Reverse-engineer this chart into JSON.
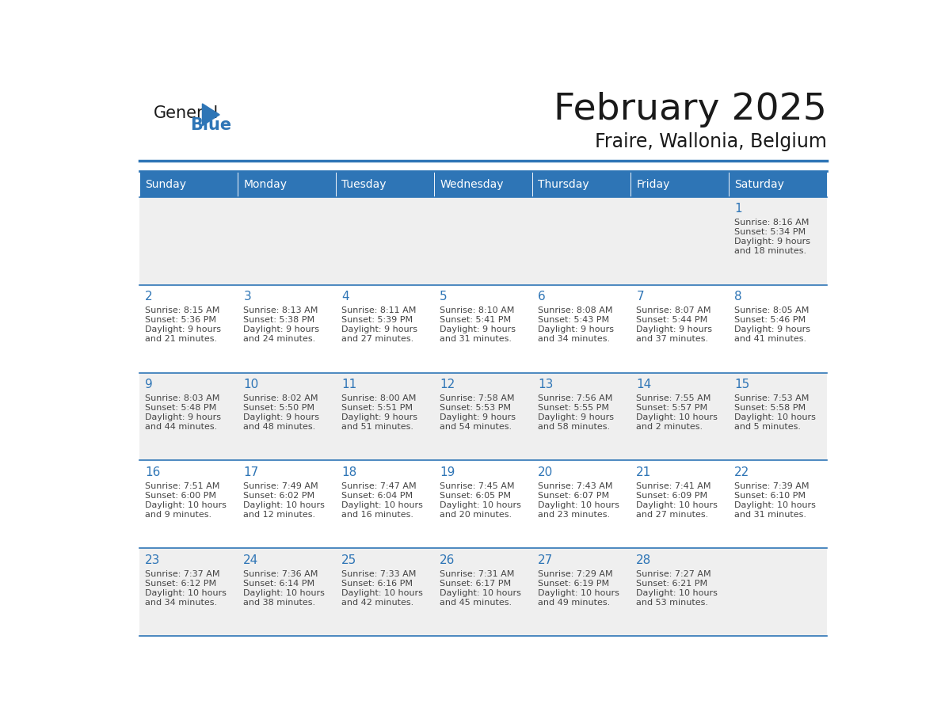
{
  "title": "February 2025",
  "subtitle": "Fraire, Wallonia, Belgium",
  "header_color": "#2E75B6",
  "header_text_color": "#FFFFFF",
  "cell_bg_white": "#FFFFFF",
  "cell_bg_gray": "#EFEFEF",
  "day_number_color": "#2E75B6",
  "text_color": "#444444",
  "line_color": "#2E75B6",
  "weekdays": [
    "Sunday",
    "Monday",
    "Tuesday",
    "Wednesday",
    "Thursday",
    "Friday",
    "Saturday"
  ],
  "calendar_data": [
    [
      null,
      null,
      null,
      null,
      null,
      null,
      {
        "day": "1",
        "sunrise": "8:16 AM",
        "sunset": "5:34 PM",
        "daylight": "9 hours",
        "daylight2": "and 18 minutes."
      }
    ],
    [
      {
        "day": "2",
        "sunrise": "8:15 AM",
        "sunset": "5:36 PM",
        "daylight": "9 hours",
        "daylight2": "and 21 minutes."
      },
      {
        "day": "3",
        "sunrise": "8:13 AM",
        "sunset": "5:38 PM",
        "daylight": "9 hours",
        "daylight2": "and 24 minutes."
      },
      {
        "day": "4",
        "sunrise": "8:11 AM",
        "sunset": "5:39 PM",
        "daylight": "9 hours",
        "daylight2": "and 27 minutes."
      },
      {
        "day": "5",
        "sunrise": "8:10 AM",
        "sunset": "5:41 PM",
        "daylight": "9 hours",
        "daylight2": "and 31 minutes."
      },
      {
        "day": "6",
        "sunrise": "8:08 AM",
        "sunset": "5:43 PM",
        "daylight": "9 hours",
        "daylight2": "and 34 minutes."
      },
      {
        "day": "7",
        "sunrise": "8:07 AM",
        "sunset": "5:44 PM",
        "daylight": "9 hours",
        "daylight2": "and 37 minutes."
      },
      {
        "day": "8",
        "sunrise": "8:05 AM",
        "sunset": "5:46 PM",
        "daylight": "9 hours",
        "daylight2": "and 41 minutes."
      }
    ],
    [
      {
        "day": "9",
        "sunrise": "8:03 AM",
        "sunset": "5:48 PM",
        "daylight": "9 hours",
        "daylight2": "and 44 minutes."
      },
      {
        "day": "10",
        "sunrise": "8:02 AM",
        "sunset": "5:50 PM",
        "daylight": "9 hours",
        "daylight2": "and 48 minutes."
      },
      {
        "day": "11",
        "sunrise": "8:00 AM",
        "sunset": "5:51 PM",
        "daylight": "9 hours",
        "daylight2": "and 51 minutes."
      },
      {
        "day": "12",
        "sunrise": "7:58 AM",
        "sunset": "5:53 PM",
        "daylight": "9 hours",
        "daylight2": "and 54 minutes."
      },
      {
        "day": "13",
        "sunrise": "7:56 AM",
        "sunset": "5:55 PM",
        "daylight": "9 hours",
        "daylight2": "and 58 minutes."
      },
      {
        "day": "14",
        "sunrise": "7:55 AM",
        "sunset": "5:57 PM",
        "daylight": "10 hours",
        "daylight2": "and 2 minutes."
      },
      {
        "day": "15",
        "sunrise": "7:53 AM",
        "sunset": "5:58 PM",
        "daylight": "10 hours",
        "daylight2": "and 5 minutes."
      }
    ],
    [
      {
        "day": "16",
        "sunrise": "7:51 AM",
        "sunset": "6:00 PM",
        "daylight": "10 hours",
        "daylight2": "and 9 minutes."
      },
      {
        "day": "17",
        "sunrise": "7:49 AM",
        "sunset": "6:02 PM",
        "daylight": "10 hours",
        "daylight2": "and 12 minutes."
      },
      {
        "day": "18",
        "sunrise": "7:47 AM",
        "sunset": "6:04 PM",
        "daylight": "10 hours",
        "daylight2": "and 16 minutes."
      },
      {
        "day": "19",
        "sunrise": "7:45 AM",
        "sunset": "6:05 PM",
        "daylight": "10 hours",
        "daylight2": "and 20 minutes."
      },
      {
        "day": "20",
        "sunrise": "7:43 AM",
        "sunset": "6:07 PM",
        "daylight": "10 hours",
        "daylight2": "and 23 minutes."
      },
      {
        "day": "21",
        "sunrise": "7:41 AM",
        "sunset": "6:09 PM",
        "daylight": "10 hours",
        "daylight2": "and 27 minutes."
      },
      {
        "day": "22",
        "sunrise": "7:39 AM",
        "sunset": "6:10 PM",
        "daylight": "10 hours",
        "daylight2": "and 31 minutes."
      }
    ],
    [
      {
        "day": "23",
        "sunrise": "7:37 AM",
        "sunset": "6:12 PM",
        "daylight": "10 hours",
        "daylight2": "and 34 minutes."
      },
      {
        "day": "24",
        "sunrise": "7:36 AM",
        "sunset": "6:14 PM",
        "daylight": "10 hours",
        "daylight2": "and 38 minutes."
      },
      {
        "day": "25",
        "sunrise": "7:33 AM",
        "sunset": "6:16 PM",
        "daylight": "10 hours",
        "daylight2": "and 42 minutes."
      },
      {
        "day": "26",
        "sunrise": "7:31 AM",
        "sunset": "6:17 PM",
        "daylight": "10 hours",
        "daylight2": "and 45 minutes."
      },
      {
        "day": "27",
        "sunrise": "7:29 AM",
        "sunset": "6:19 PM",
        "daylight": "10 hours",
        "daylight2": "and 49 minutes."
      },
      {
        "day": "28",
        "sunrise": "7:27 AM",
        "sunset": "6:21 PM",
        "daylight": "10 hours",
        "daylight2": "and 53 minutes."
      },
      null
    ]
  ]
}
